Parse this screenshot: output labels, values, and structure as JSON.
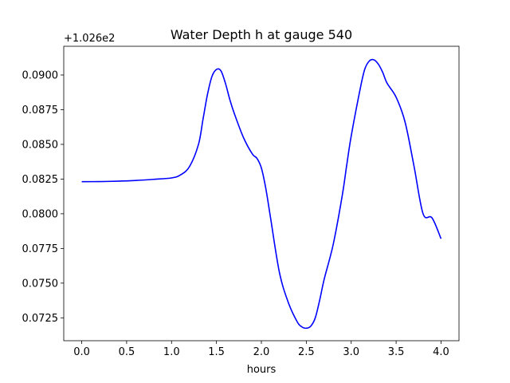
{
  "chart_data": {
    "type": "line",
    "title": "Water Depth h at gauge 540",
    "xlabel": "hours",
    "ylabel": "",
    "offset_text": "+1.026e2",
    "offset_value": 102.6,
    "xlim": [
      -0.2,
      4.2
    ],
    "ylim": [
      0.07085,
      0.09207
    ],
    "x_ticks": [
      0.0,
      0.5,
      1.0,
      1.5,
      2.0,
      2.5,
      3.0,
      3.5,
      4.0
    ],
    "x_tick_labels": [
      "0.0",
      "0.5",
      "1.0",
      "1.5",
      "2.0",
      "2.5",
      "3.0",
      "3.5",
      "4.0"
    ],
    "y_ticks": [
      0.0725,
      0.075,
      0.0775,
      0.08,
      0.0825,
      0.085,
      0.0875,
      0.09
    ],
    "y_tick_labels": [
      "0.0725",
      "0.0750",
      "0.0775",
      "0.0800",
      "0.0825",
      "0.0850",
      "0.0875",
      "0.0900"
    ],
    "grid": false,
    "colors": {
      "line": "#0000ff",
      "axes": "#000000",
      "background": "#ffffff"
    },
    "series": [
      {
        "x": [
          0.0,
          0.2,
          0.4,
          0.6,
          0.8,
          1.0,
          1.1,
          1.2,
          1.3,
          1.35,
          1.4,
          1.45,
          1.5,
          1.55,
          1.6,
          1.65,
          1.7,
          1.8,
          1.9,
          1.95,
          2.0,
          2.05,
          2.1,
          2.2,
          2.3,
          2.4,
          2.45,
          2.5,
          2.55,
          2.6,
          2.65,
          2.7,
          2.8,
          2.9,
          2.95,
          3.0,
          3.1,
          3.15,
          3.2,
          3.25,
          3.3,
          3.35,
          3.4,
          3.5,
          3.6,
          3.7,
          3.8,
          3.9,
          4.0
        ],
        "values": [
          0.08231,
          0.08232,
          0.08235,
          0.0824,
          0.08248,
          0.08258,
          0.0828,
          0.0834,
          0.085,
          0.0868,
          0.0886,
          0.0899,
          0.0904,
          0.0903,
          0.0894,
          0.0882,
          0.0872,
          0.0855,
          0.0843,
          0.084,
          0.0833,
          0.0818,
          0.0798,
          0.0758,
          0.0736,
          0.0722,
          0.07185,
          0.07175,
          0.0719,
          0.0725,
          0.0738,
          0.0753,
          0.0778,
          0.0813,
          0.0835,
          0.0856,
          0.089,
          0.0904,
          0.091,
          0.0911,
          0.0908,
          0.0902,
          0.0894,
          0.0884,
          0.0866,
          0.0834,
          0.08,
          0.0797,
          0.0782
        ]
      }
    ]
  }
}
